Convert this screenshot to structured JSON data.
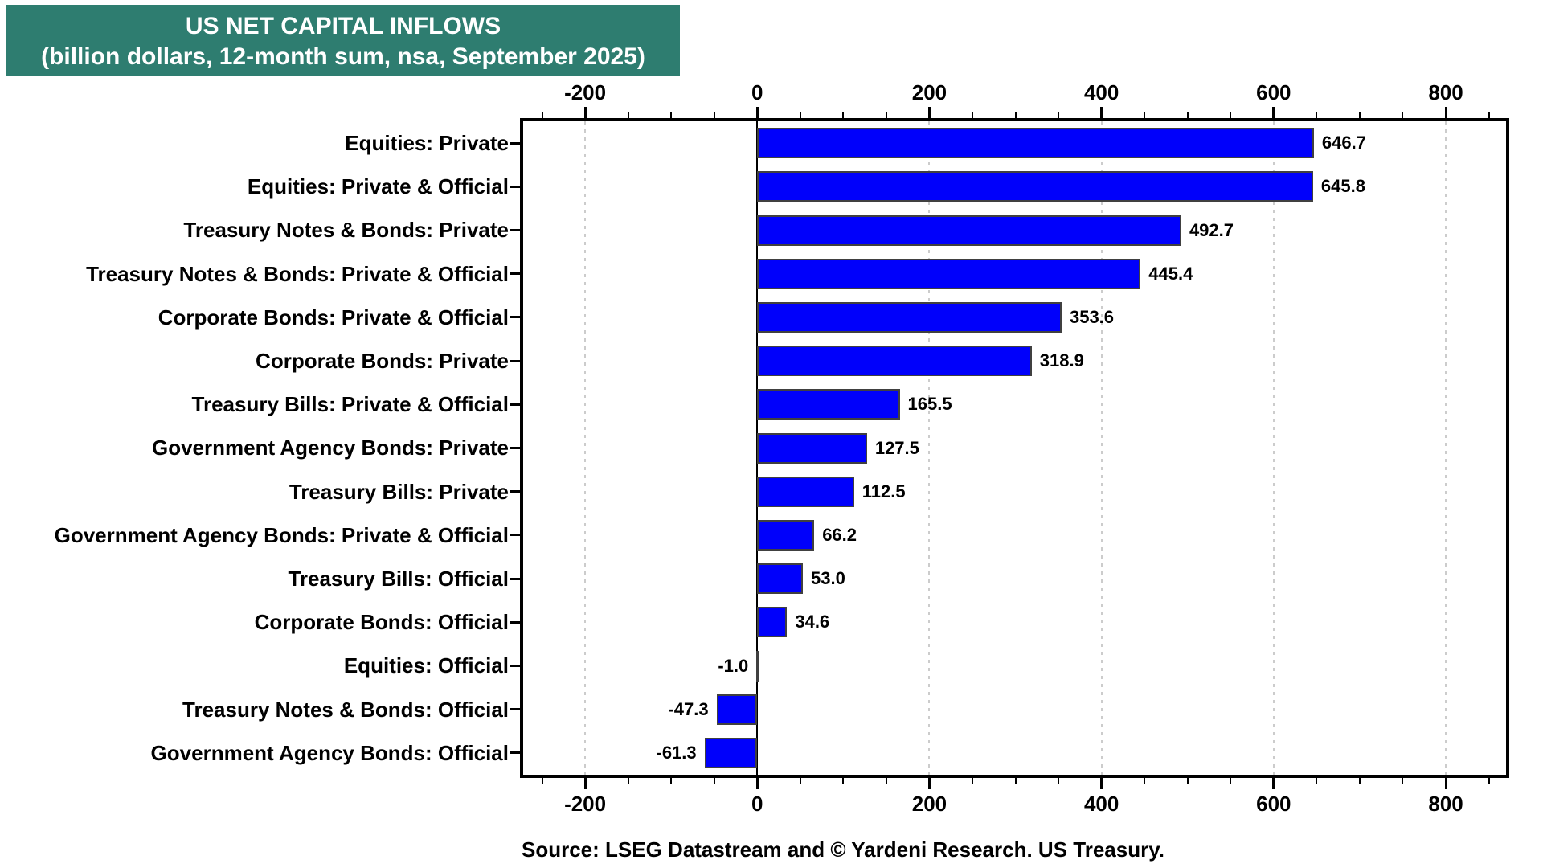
{
  "title": {
    "line1": "US NET CAPITAL INFLOWS",
    "line2": "(billion dollars, 12-month sum, nsa, September 2025)"
  },
  "colors": {
    "title_bg": "#2E7D70",
    "title_text": "#FFFFFF",
    "bar_fill": "#0000FB",
    "bar_edge": "#404040",
    "grid_line": "#CCCCCC",
    "zero_line": "#000000",
    "plot_border": "#000000",
    "text": "#000000"
  },
  "chart_data": {
    "type": "bar",
    "orientation": "horizontal",
    "title": "US NET CAPITAL INFLOWS",
    "subtitle": "(billion dollars, 12-month sum, nsa, September 2025)",
    "unit": "billion dollars",
    "categories": [
      "Equities: Private",
      "Equities: Private & Official",
      "Treasury Notes & Bonds: Private",
      "Treasury Notes & Bonds: Private & Official",
      "Corporate Bonds: Private & Official",
      "Corporate Bonds: Private",
      "Treasury Bills: Private & Official",
      "Government Agency Bonds: Private",
      "Treasury Bills: Private",
      "Government Agency Bonds: Private & Official",
      "Treasury Bills: Official",
      "Corporate Bonds: Official",
      "Equities: Official",
      "Treasury Notes & Bonds: Official",
      "Government Agency Bonds: Official"
    ],
    "values": [
      646.7,
      645.8,
      492.7,
      445.4,
      353.6,
      318.9,
      165.5,
      127.5,
      112.5,
      66.2,
      53.0,
      34.6,
      -1.0,
      -47.3,
      -61.3
    ],
    "value_labels": [
      "646.7",
      "645.8",
      "492.7",
      "445.4",
      "353.6",
      "318.9",
      "165.5",
      "127.5",
      "112.5",
      "66.2",
      "53.0",
      "34.6",
      "-1.0",
      "-47.3",
      "-61.3"
    ],
    "xlim": [
      -272,
      870
    ],
    "x_major_ticks": [
      -200,
      0,
      200,
      400,
      600,
      800
    ],
    "x_tick_labels": [
      "-200",
      "0",
      "200",
      "400",
      "600",
      "800"
    ],
    "x_minor_tick_step": 50,
    "minor_tick_range": [
      -250,
      850
    ],
    "gridlines": "dashed vertical at major ticks, solid black line at zero",
    "axis_sides": [
      "top",
      "bottom"
    ],
    "legend": "none"
  },
  "source": {
    "text": "Source: LSEG Datastream and © Yardeni Research. US Treasury."
  }
}
